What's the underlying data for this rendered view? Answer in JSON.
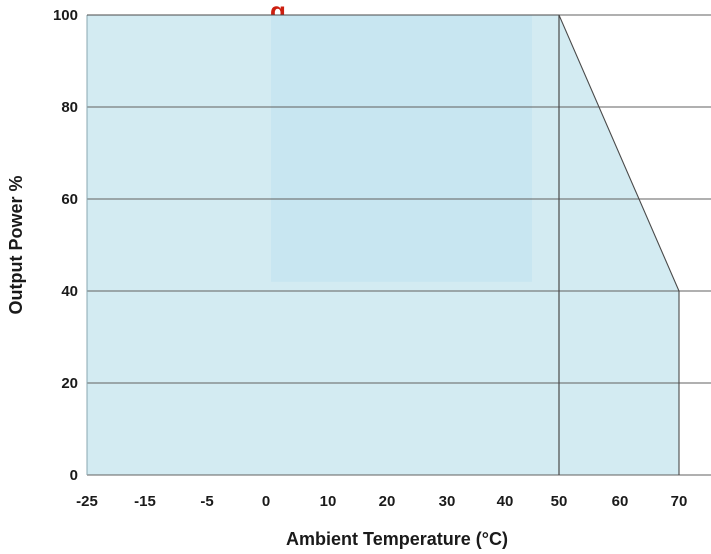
{
  "chart_data": {
    "type": "area",
    "title_fragment": "g",
    "xlabel": "Ambient Temperature (°C)",
    "ylabel": "Output Power %",
    "xlim": [
      -25,
      70
    ],
    "ylim": [
      0,
      100
    ],
    "x_ticks": [
      -25,
      -15,
      -5,
      0,
      10,
      20,
      30,
      40,
      50,
      60,
      70
    ],
    "y_ticks": [
      0,
      20,
      40,
      60,
      80,
      100
    ],
    "grid": "horizontal",
    "series": [
      {
        "points": [
          [
            -25,
            0
          ],
          [
            -25,
            100
          ],
          [
            50,
            100
          ],
          [
            70,
            40
          ],
          [
            70,
            0
          ]
        ]
      }
    ],
    "reference_line_x": 50
  },
  "colors": {
    "fill": "#d3ebf2",
    "inner_fill": "#c7e6f1",
    "line": "#4a4a4a",
    "grid": "#606060",
    "title": "#cc1f10"
  }
}
